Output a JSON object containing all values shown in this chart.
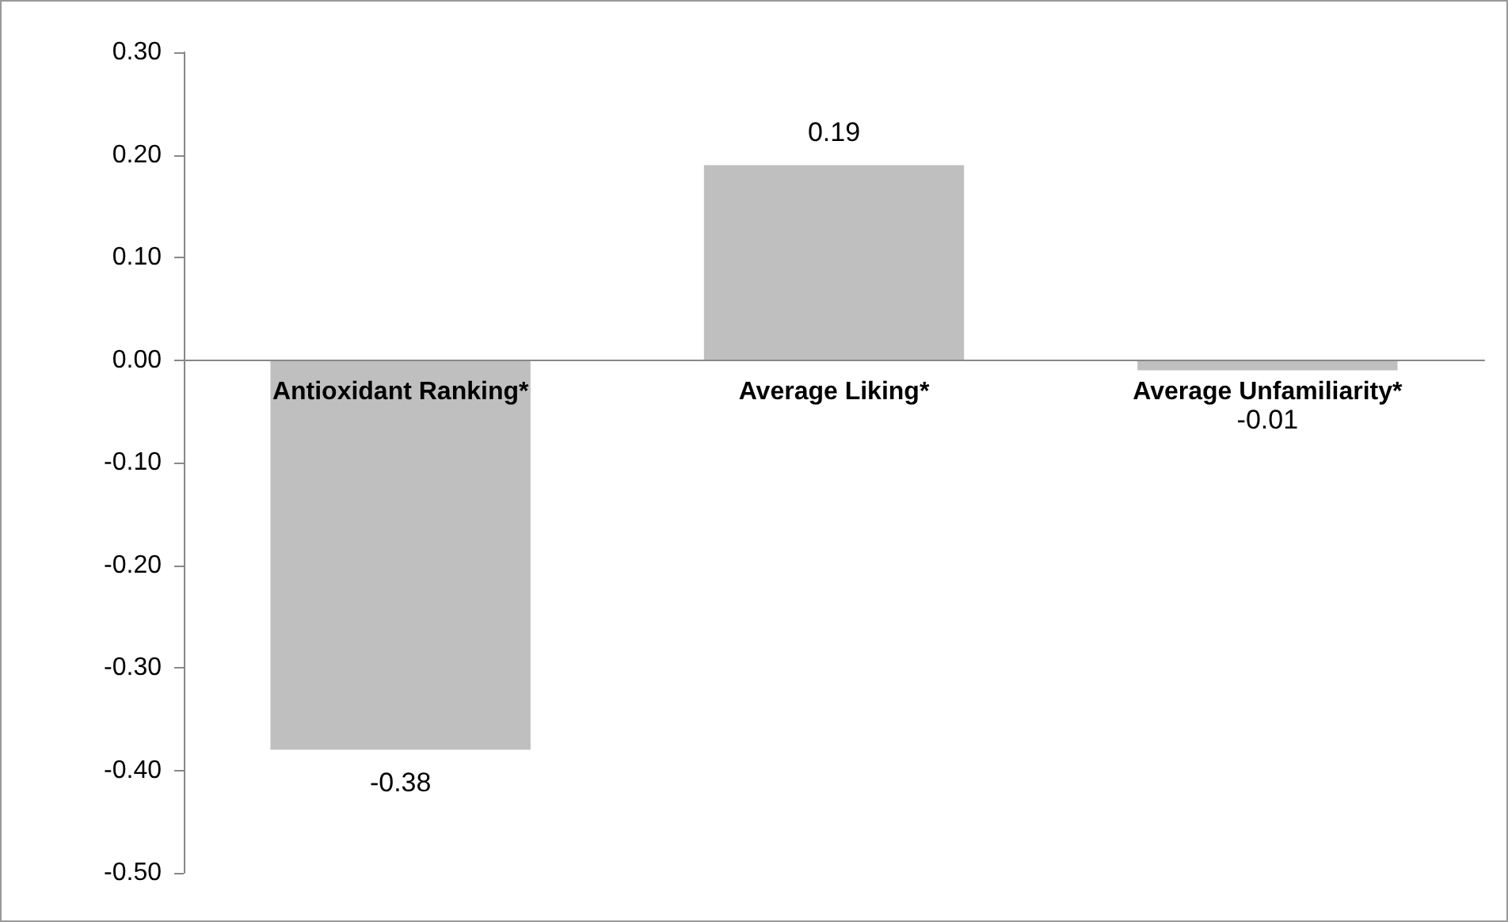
{
  "chart_data": {
    "type": "bar",
    "categories": [
      "Antioxidant Ranking*",
      "Average Liking*",
      "Average Unfamiliarity*"
    ],
    "values": [
      -0.38,
      0.19,
      -0.01
    ],
    "color": "#bfbfbf",
    "data_labels": true,
    "ylim": [
      -0.5,
      0.3
    ],
    "yticks": [
      {
        "value": -0.5,
        "label": "-0.50"
      },
      {
        "value": -0.4,
        "label": "-0.40"
      },
      {
        "value": -0.3,
        "label": "-0.30"
      },
      {
        "value": -0.2,
        "label": "-0.20"
      },
      {
        "value": -0.1,
        "label": "-0.10"
      },
      {
        "value": 0,
        "label": "0.00"
      },
      {
        "value": 0.1,
        "label": "0.10"
      },
      {
        "value": 0.2,
        "label": "0.20"
      },
      {
        "value": 0.3,
        "label": "0.30"
      }
    ],
    "grid": false
  }
}
